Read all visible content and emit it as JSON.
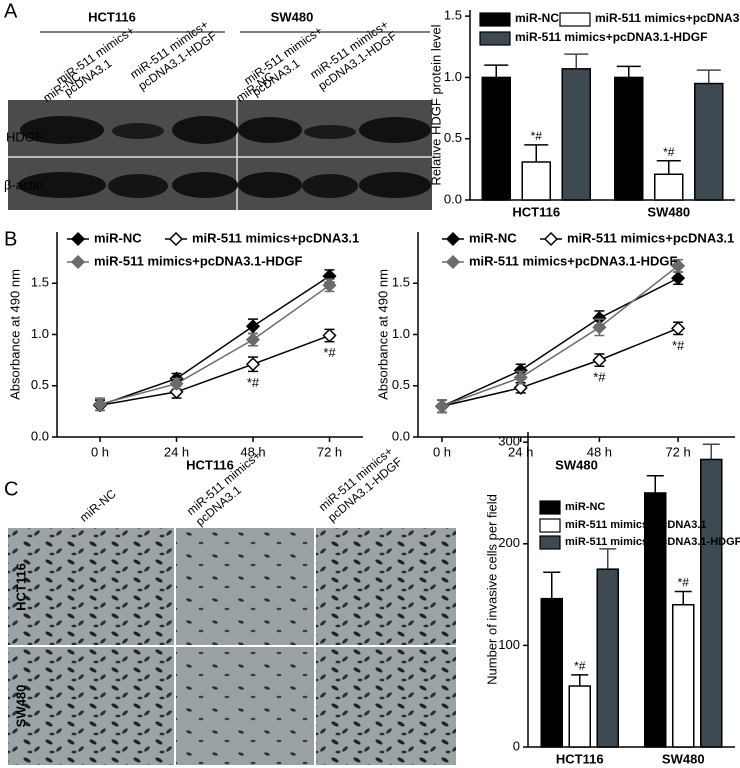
{
  "figure": {
    "panels": [
      "A",
      "B",
      "C"
    ],
    "blot": {
      "groups": [
        "HCT116",
        "SW480"
      ],
      "lanes": [
        [
          "miR-NC"
        ],
        [
          "miR-511 mimics+",
          "pcDNA3.1"
        ],
        [
          "miR-511 mimics+",
          "pcDNA3.1-HDGF"
        ]
      ],
      "rows": [
        "HDGF",
        "β-actin"
      ]
    },
    "micrographs": {
      "columns": [
        [
          "miR-NC"
        ],
        [
          "miR-511 mimics+",
          "pcDNA3.1"
        ],
        [
          "miR-511 mimics+",
          "pcDNA3.1-HDGF"
        ]
      ],
      "rows": [
        "HCT116",
        "SW480"
      ]
    }
  },
  "chart_data": [
    {
      "type": "bar",
      "ylabel": "Relative HDGF protein level",
      "categories": [
        "HCT116",
        "SW480"
      ],
      "series": [
        {
          "name": "miR-NC",
          "color": "#000000",
          "values": [
            1.0,
            1.0
          ],
          "errors": [
            0.1,
            0.09
          ]
        },
        {
          "name": "miR-511 mimics+pcDNA3.1",
          "color": "#ffffff",
          "values": [
            0.31,
            0.21
          ],
          "errors": [
            0.14,
            0.11
          ]
        },
        {
          "name": "miR-511 mimics+pcDNA3.1-HDGF",
          "color": "#3d4a52",
          "values": [
            1.07,
            0.95
          ],
          "errors": [
            0.12,
            0.11
          ]
        }
      ],
      "annotations": [
        {
          "text": "*#",
          "series": 1,
          "category": 0
        },
        {
          "text": "*#",
          "series": 1,
          "category": 1
        }
      ],
      "ylim": [
        0,
        1.55
      ],
      "yticks": [
        {
          "value": 0,
          "label": "0.0"
        },
        {
          "value": 0.5,
          "label": "0.5"
        },
        {
          "value": 1,
          "label": "1.0"
        },
        {
          "value": 1.5,
          "label": "1.5"
        }
      ]
    },
    {
      "type": "line",
      "xlabel": "HCT116",
      "ylabel": "Absorbance at 490 nm",
      "categories": [
        "0 h",
        "24 h",
        "48 h",
        "72 h"
      ],
      "series": [
        {
          "name": "miR-NC",
          "color": "#000000",
          "marker_fill": "#000000",
          "values": [
            0.31,
            0.57,
            1.08,
            1.57
          ],
          "errors": [
            0.05,
            0.05,
            0.07,
            0.06
          ]
        },
        {
          "name": "miR-511 mimics+pcDNA3.1",
          "color": "#000000",
          "marker_fill": "#ffffff",
          "values": [
            0.31,
            0.44,
            0.71,
            0.99
          ],
          "errors": [
            0.05,
            0.06,
            0.07,
            0.06
          ]
        },
        {
          "name": "miR-511 mimics+pcDNA3.1-HDGF",
          "color": "#6b6b6b",
          "marker_fill": "#6b6b6b",
          "values": [
            0.32,
            0.52,
            0.95,
            1.48
          ],
          "errors": [
            0.06,
            0.05,
            0.06,
            0.06
          ]
        }
      ],
      "annotations": [
        {
          "text": "*#",
          "series": 1,
          "category": 2
        },
        {
          "text": "*#",
          "series": 1,
          "category": 3
        }
      ],
      "ylim": [
        0,
        2.0
      ],
      "yticks": [
        {
          "value": 0,
          "label": "0.0"
        },
        {
          "value": 0.5,
          "label": "0.5"
        },
        {
          "value": 1,
          "label": "1.0"
        },
        {
          "value": 1.5,
          "label": "1.5"
        }
      ]
    },
    {
      "type": "line",
      "xlabel": "SW480",
      "ylabel": "Absorbance at 490 nm",
      "categories": [
        "0 h",
        "24 h",
        "48 h",
        "72 h"
      ],
      "series": [
        {
          "name": "miR-NC",
          "color": "#000000",
          "marker_fill": "#000000",
          "values": [
            0.3,
            0.65,
            1.16,
            1.55
          ],
          "errors": [
            0.06,
            0.06,
            0.07,
            0.06
          ]
        },
        {
          "name": "miR-511 mimics+pcDNA3.1",
          "color": "#000000",
          "marker_fill": "#ffffff",
          "values": [
            0.3,
            0.48,
            0.75,
            1.06
          ],
          "errors": [
            0.06,
            0.05,
            0.06,
            0.06
          ]
        },
        {
          "name": "miR-511 mimics+pcDNA3.1-HDGF",
          "color": "#6b6b6b",
          "marker_fill": "#6b6b6b",
          "values": [
            0.3,
            0.58,
            1.07,
            1.67
          ],
          "errors": [
            0.06,
            0.06,
            0.08,
            0.06
          ]
        }
      ],
      "annotations": [
        {
          "text": "*#",
          "series": 1,
          "category": 2
        },
        {
          "text": "*#",
          "series": 1,
          "category": 3
        }
      ],
      "ylim": [
        0,
        2.0
      ],
      "yticks": [
        {
          "value": 0,
          "label": "0.0"
        },
        {
          "value": 0.5,
          "label": "0.5"
        },
        {
          "value": 1,
          "label": "1.0"
        },
        {
          "value": 1.5,
          "label": "1.5"
        }
      ]
    },
    {
      "type": "bar",
      "ylabel": "Number of invasive cells per field",
      "categories": [
        "HCT116",
        "SW480"
      ],
      "series": [
        {
          "name": "miR-NC",
          "color": "#000000",
          "values": [
            146,
            250
          ],
          "errors": [
            26,
            17
          ]
        },
        {
          "name": "miR-511 mimics+pcDNA3.1",
          "color": "#ffffff",
          "values": [
            60,
            140
          ],
          "errors": [
            11,
            13
          ]
        },
        {
          "name": "miR-511 mimics+pcDNA3.1-HDGF",
          "color": "#3d4a52",
          "values": [
            175,
            283
          ],
          "errors": [
            20,
            15
          ]
        }
      ],
      "annotations": [
        {
          "text": "*#",
          "series": 1,
          "category": 0
        },
        {
          "text": "*#",
          "series": 1,
          "category": 1
        }
      ],
      "ylim": [
        0,
        310
      ],
      "yticks": [
        0,
        100,
        200,
        300
      ]
    }
  ]
}
